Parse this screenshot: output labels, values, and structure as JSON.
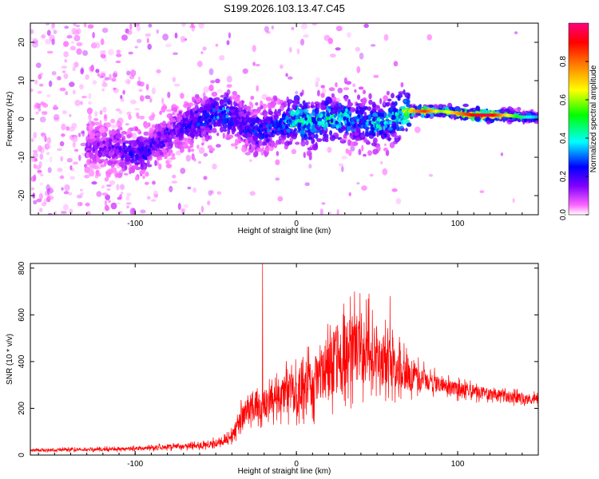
{
  "title": "S199.2026.103.13.47.C45",
  "chart_data": [
    {
      "type": "heatmap",
      "xlabel": "Height of straight line (km)",
      "ylabel": "Frequency (Hz)",
      "xlim": [
        -165,
        150
      ],
      "ylim": [
        -25,
        25
      ],
      "xticks": [
        -100,
        0,
        100
      ],
      "xtick_labels": [
        "-100",
        "0",
        "100"
      ],
      "yticks": [
        -20,
        -10,
        0,
        10,
        20
      ],
      "ytick_labels": [
        "-20",
        "-10",
        "0",
        "10",
        "20"
      ],
      "colorbar": {
        "label": "Normalized spectral amplitude",
        "range": [
          0,
          1
        ],
        "ticks": [
          0.0,
          0.2,
          0.4,
          0.6,
          0.8
        ],
        "tick_labels": [
          "0.0",
          "0.2",
          "0.4",
          "0.6",
          "0.8"
        ],
        "colors": [
          "#ffffff",
          "#ff66ff",
          "#8000ff",
          "#0000ff",
          "#00ffff",
          "#00ff00",
          "#ffff00",
          "#ff8000",
          "#ff0000",
          "#ff0080"
        ]
      },
      "ridge": {
        "x": [
          -125,
          -110,
          -95,
          -85,
          -75,
          -65,
          -55,
          -45,
          -35,
          -25,
          -15,
          -5,
          0,
          10,
          20,
          30,
          40,
          50,
          60,
          70,
          80,
          90,
          100,
          110,
          120,
          130,
          140,
          150
        ],
        "frequency": [
          -7,
          -8,
          -9,
          -6,
          -3,
          -1,
          0,
          2,
          -1,
          -3,
          -2,
          -1,
          0,
          -1,
          0,
          0,
          -1,
          -1,
          0,
          2,
          2,
          2,
          1.5,
          1,
          1,
          1,
          0.5,
          0.5
        ],
        "amplitude": [
          0.25,
          0.3,
          0.35,
          0.3,
          0.3,
          0.35,
          0.4,
          0.45,
          0.35,
          0.4,
          0.4,
          0.45,
          0.6,
          0.5,
          0.55,
          0.5,
          0.45,
          0.5,
          0.5,
          0.7,
          0.85,
          0.6,
          0.75,
          0.9,
          0.95,
          0.7,
          0.5,
          0.4
        ]
      }
    },
    {
      "type": "line",
      "xlabel": "Height of straight line (km)",
      "ylabel": "SNR (10 * v/v)",
      "xlim": [
        -165,
        150
      ],
      "ylim": [
        0,
        820
      ],
      "xticks": [
        -100,
        0,
        100
      ],
      "xtick_labels": [
        "-100",
        "0",
        "100"
      ],
      "yticks": [
        0,
        200,
        400,
        600,
        800
      ],
      "ytick_labels": [
        "0",
        "200",
        "400",
        "600",
        "800"
      ],
      "series": [
        {
          "name": "SNR",
          "color": "#ff0000",
          "x": [
            -165,
            -150,
            -140,
            -130,
            -120,
            -110,
            -100,
            -90,
            -80,
            -70,
            -60,
            -50,
            -45,
            -40,
            -35,
            -30,
            -25,
            -20,
            -15,
            -10,
            -5,
            0,
            5,
            10,
            15,
            20,
            25,
            30,
            35,
            40,
            45,
            50,
            55,
            60,
            65,
            70,
            75,
            80,
            90,
            100,
            110,
            120,
            130,
            140,
            150
          ],
          "values": [
            20,
            22,
            24,
            22,
            25,
            25,
            28,
            30,
            35,
            38,
            40,
            50,
            60,
            80,
            150,
            200,
            230,
            220,
            230,
            250,
            270,
            260,
            280,
            320,
            360,
            380,
            400,
            420,
            440,
            450,
            440,
            420,
            400,
            390,
            360,
            340,
            330,
            320,
            300,
            280,
            270,
            260,
            250,
            240,
            240
          ],
          "amplitude": [
            10,
            10,
            12,
            10,
            14,
            12,
            14,
            16,
            18,
            20,
            22,
            28,
            30,
            40,
            80,
            100,
            120,
            110,
            110,
            130,
            150,
            150,
            160,
            190,
            220,
            240,
            250,
            260,
            270,
            250,
            240,
            220,
            200,
            170,
            150,
            130,
            100,
            80,
            60,
            55,
            50,
            45,
            45,
            40,
            40
          ]
        }
      ],
      "spike": {
        "x": -21,
        "value": 820
      },
      "secondary_peaks": [
        {
          "x": 36,
          "value": 700
        },
        {
          "x": 45,
          "value": 690
        },
        {
          "x": 58,
          "value": 680
        }
      ]
    }
  ]
}
